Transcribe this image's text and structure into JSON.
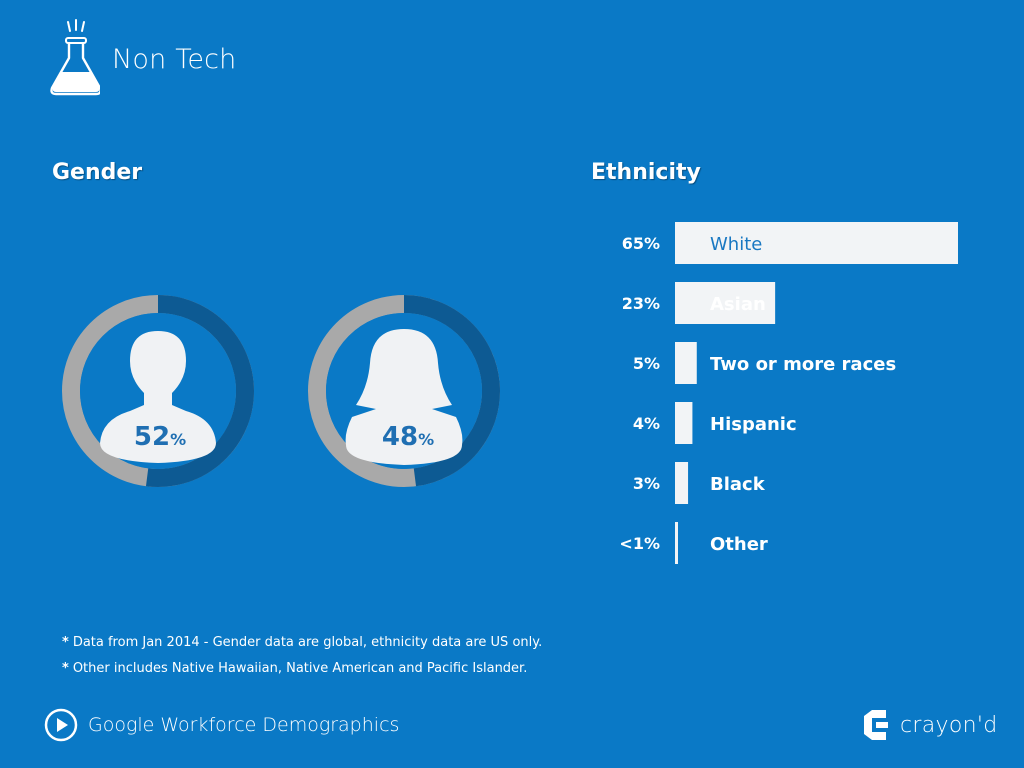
{
  "page": {
    "title": "Non Tech",
    "icon": "flask-icon"
  },
  "gender": {
    "title": "Gender",
    "ring_track_color": "#a9a9a9",
    "ring_fill_color": "#0d5a93",
    "figure_color": "#f0f2f4",
    "label_color": "#1f6fb2"
  },
  "ethnicity": {
    "title": "Ethnicity",
    "bar_color": "#f2f4f6",
    "label_in_bar_color": "#1a78c2"
  },
  "chart_data": [
    {
      "type": "pie",
      "title": "Gender",
      "categories": [
        "Male",
        "Female"
      ],
      "values": [
        52,
        48
      ],
      "value_labels": [
        "52",
        "48"
      ],
      "unit": "%"
    },
    {
      "type": "bar",
      "orientation": "horizontal",
      "title": "Ethnicity",
      "categories": [
        "White",
        "Asian",
        "Two or more races",
        "Hispanic",
        "Black",
        "Other"
      ],
      "values": [
        65,
        23,
        5,
        4,
        3,
        0.5
      ],
      "value_labels": [
        "65%",
        "23%",
        "5%",
        "4%",
        "3%",
        "<1%"
      ],
      "xlim": [
        0,
        65
      ]
    }
  ],
  "notes": [
    "Data from Jan 2014 - Gender data are global, ethnicity data are US only.",
    "Other includes Native Hawaiian, Native American and Pacific Islander."
  ],
  "note_marker": "*",
  "footer": {
    "title": "Google Workforce Demographics",
    "play_icon": "play-icon",
    "brand_name": "crayon'd",
    "brand_icon": "crayond-logo-icon"
  }
}
